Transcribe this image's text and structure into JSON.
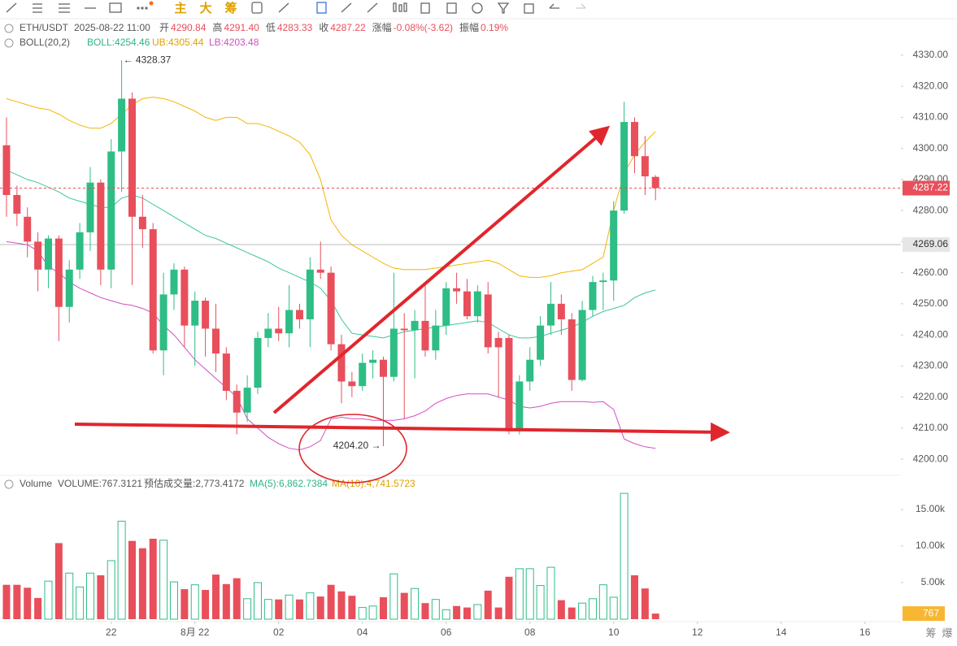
{
  "toolbar": {
    "items": [
      "主",
      "大",
      "筹"
    ],
    "footer": [
      "筹",
      "爆"
    ]
  },
  "chart_data": [
    {
      "type": "candlestick",
      "symbol": "ETH/USDT",
      "time": "2025-08-22 11:00",
      "header": [
        {
          "label": "开",
          "value": "4290.84"
        },
        {
          "label": "高",
          "value": "4291.40"
        },
        {
          "label": "低",
          "value": "4283.33"
        },
        {
          "label": "收",
          "value": "4287.22"
        },
        {
          "label": "涨幅",
          "value": "-0.08%(-3.62)"
        },
        {
          "label": "振幅",
          "value": "0.19%"
        }
      ],
      "indicator": {
        "name": "BOLL(20,2)",
        "mid": "BOLL:4254.46",
        "upper": "UB:4305.44",
        "lower": "LB:4203.48"
      },
      "up_color": "#2ebd85",
      "down_color": "#e84f5b",
      "open": [
        4301,
        4285,
        4278,
        4270,
        4261,
        4271,
        4249,
        4261,
        4273,
        4289,
        4261,
        4299,
        4316,
        4278,
        4274,
        4235,
        4253,
        4261,
        4243,
        4251,
        4242,
        4234,
        4222,
        4215,
        4223,
        4239,
        4242,
        4240.5,
        4248,
        4245,
        4261,
        4260,
        4237,
        4225,
        4223.5,
        4231,
        4232,
        4226.5,
        4242,
        4241.5,
        4244.5,
        4235,
        4243,
        4255,
        4254,
        4246,
        4253,
        4239,
        4239,
        4209,
        4225,
        4232,
        4243,
        4250,
        4245,
        4225.5,
        4248,
        4257,
        4257.5,
        4280,
        4308.5,
        4297.5,
        4290.84
      ],
      "high": [
        4310,
        4288,
        4281,
        4273,
        4272,
        4272,
        4264,
        4276,
        4294,
        4290,
        4303,
        4328.37,
        4318,
        4285,
        4276,
        4260,
        4263,
        4262,
        4254,
        4252,
        4250,
        4236,
        4224,
        4227,
        4241,
        4247,
        4249,
        4256,
        4250,
        4265,
        4270,
        4262,
        4240,
        4228,
        4234,
        4235,
        4233,
        4260,
        4247,
        4248,
        4256,
        4248,
        4257,
        4260,
        4258,
        4256,
        4257,
        4241,
        4240,
        4227,
        4236,
        4246,
        4257,
        4253,
        4247,
        4251,
        4259,
        4260,
        4283,
        4315,
        4310,
        4304,
        4291.4
      ],
      "low": [
        4278,
        4275,
        4265,
        4254,
        4255,
        4238,
        4244,
        4258,
        4267,
        4256,
        4255,
        4286,
        4256,
        4268,
        4234,
        4227,
        4248,
        4236,
        4230,
        4233,
        4228,
        4219,
        4208,
        4212,
        4221,
        4236,
        4238,
        4236,
        4242,
        4236,
        4258,
        4235,
        4218,
        4220,
        4222,
        4226,
        4204.2,
        4225,
        4213,
        4226,
        4233,
        4232,
        4240,
        4250,
        4245,
        4244,
        4234,
        4220,
        4208,
        4208,
        4222,
        4230,
        4240,
        4240,
        4222,
        4225,
        4246,
        4248,
        4251,
        4279,
        4292,
        4285,
        4283.33
      ],
      "close": [
        4285,
        4279,
        4270,
        4261,
        4271,
        4249,
        4261,
        4273,
        4289,
        4261,
        4299,
        4316,
        4278,
        4274,
        4235,
        4253,
        4261,
        4243,
        4251,
        4242,
        4234,
        4222,
        4215,
        4223,
        4239,
        4242,
        4240.5,
        4248,
        4245,
        4261,
        4260,
        4237,
        4225,
        4223.5,
        4231,
        4232,
        4226.5,
        4242,
        4241.5,
        4244.5,
        4235,
        4243,
        4255,
        4254,
        4246,
        4254,
        4236,
        4236,
        4209,
        4225,
        4232,
        4243,
        4250,
        4245,
        4225.5,
        4248,
        4257,
        4257.5,
        4280,
        4308.5,
        4297.5,
        4291,
        4287.22
      ],
      "boll_upper": {
        "color": "#f5b400",
        "values": [
          4316,
          4315,
          4314,
          4313,
          4312.5,
          4311,
          4309,
          4307.5,
          4306.5,
          4306.5,
          4308,
          4311,
          4314,
          4316,
          4316.5,
          4316,
          4315,
          4313.5,
          4312,
          4310,
          4309,
          4310,
          4310,
          4308,
          4308,
          4307,
          4305.5,
          4304,
          4302,
          4298,
          4290,
          4277,
          4272,
          4269,
          4267,
          4265,
          4263,
          4261.5,
          4261,
          4261,
          4261,
          4261.5,
          4262,
          4262.5,
          4263,
          4263.5,
          4264,
          4263,
          4261,
          4259,
          4258.5,
          4258.5,
          4259,
          4260,
          4260.5,
          4261,
          4263,
          4265,
          4280,
          4292,
          4298,
          4302,
          4305.44
        ]
      },
      "boll_mid": {
        "color": "#3cc59a",
        "values": [
          4293,
          4291.5,
          4290,
          4289,
          4287.5,
          4286,
          4284,
          4283,
          4282,
          4281,
          4281,
          4284,
          4285,
          4284,
          4282,
          4280,
          4278,
          4276,
          4274,
          4272,
          4271,
          4269.5,
          4268,
          4266.5,
          4265,
          4263.5,
          4261.5,
          4260,
          4258.5,
          4257,
          4255,
          4251,
          4245,
          4240.5,
          4240,
          4239.5,
          4239,
          4240,
          4241,
          4241.5,
          4242,
          4242.5,
          4243,
          4243.5,
          4244,
          4244.5,
          4244,
          4242,
          4240,
          4239,
          4239,
          4239.5,
          4240.5,
          4241.5,
          4242.5,
          4244,
          4246,
          4247.5,
          4248.5,
          4249.5,
          4252,
          4253.5,
          4254.46
        ]
      },
      "boll_lower": {
        "color": "#d24fc4",
        "values": [
          4270,
          4269.5,
          4269,
          4267,
          4262,
          4260,
          4257,
          4255,
          4253.5,
          4252,
          4251,
          4250,
          4249.5,
          4248.5,
          4247,
          4243,
          4240,
          4236,
          4232,
          4229,
          4226,
          4223,
          4220,
          4213,
          4210,
          4207,
          4205,
          4203.5,
          4203,
          4204,
          4206,
          4213,
          4213.5,
          4213,
          4213,
          4212.5,
          4212.5,
          4212.5,
          4213,
          4214,
          4215.5,
          4218,
          4219.5,
          4220.5,
          4221,
          4221,
          4221,
          4220,
          4219,
          4217,
          4216.5,
          4217,
          4218,
          4218.5,
          4218.5,
          4218.5,
          4218.3,
          4218.5,
          4216,
          4206.5,
          4205,
          4204,
          4203.48
        ]
      },
      "annotations": [
        "← 4328.37",
        "4204.20 →"
      ],
      "current_price": 4287.22,
      "marked_price": 4269.06,
      "xlim": [
        -0.62,
        85.44
      ],
      "ylim": [
        4194.8,
        4339.9
      ],
      "yticks": [
        {
          "value": 4200,
          "label": "4200.00"
        },
        {
          "value": 4210,
          "label": "4210.00"
        },
        {
          "value": 4220,
          "label": "4220.00"
        },
        {
          "value": 4230,
          "label": "4230.00"
        },
        {
          "value": 4240,
          "label": "4240.00"
        },
        {
          "value": 4250,
          "label": "4250.00"
        },
        {
          "value": 4260,
          "label": "4260.00"
        },
        {
          "value": 4270,
          "label": "4270.00"
        },
        {
          "value": 4280,
          "label": "4280.00"
        },
        {
          "value": 4290,
          "label": "4290.00"
        },
        {
          "value": 4300,
          "label": "4300.00"
        },
        {
          "value": 4310,
          "label": "4310.00"
        },
        {
          "value": 4320,
          "label": "4320.00"
        },
        {
          "value": 4330,
          "label": "4330.00"
        }
      ]
    },
    {
      "type": "volume",
      "legend": [
        "Volume",
        "VOLUME:767.3121",
        "预估成交量:2,773.4172",
        "MA(5):6,862.7384",
        "MA(10):4,741.5723"
      ],
      "values": [
        4700,
        4700,
        4300,
        2900,
        5200,
        10400,
        6300,
        4400,
        6300,
        6000,
        8000,
        13400,
        10700,
        9700,
        11000,
        10800,
        5100,
        4100,
        4700,
        4000,
        6100,
        4800,
        5600,
        2800,
        5000,
        2700,
        2700,
        3300,
        2700,
        3600,
        3100,
        4700,
        3800,
        3200,
        1600,
        1800,
        3000,
        6200,
        3600,
        4200,
        2200,
        2700,
        1300,
        1800,
        1600,
        2000,
        3900,
        1600,
        5800,
        6900,
        6900,
        4600,
        7100,
        2600,
        1600,
        2200,
        2800,
        4700,
        3000,
        17200,
        6000,
        4200,
        767.3121
      ],
      "current": {
        "value": 767.3121,
        "label": "767"
      },
      "xlim": [
        -0.62,
        85.44
      ],
      "ylim": [
        0,
        17440
      ],
      "yticks": [
        {
          "value": 5000,
          "label": "5.00k"
        },
        {
          "value": 10000,
          "label": "10.00k"
        },
        {
          "value": 15000,
          "label": "15.00k"
        }
      ],
      "xticks": [
        {
          "value": 10,
          "label": "22"
        },
        {
          "value": 18,
          "label": "8月 22"
        },
        {
          "value": 26,
          "label": "02"
        },
        {
          "value": 34,
          "label": "04"
        },
        {
          "value": 42,
          "label": "06"
        },
        {
          "value": 50,
          "label": "08"
        },
        {
          "value": 58,
          "label": "10"
        },
        {
          "value": 66,
          "label": "12"
        },
        {
          "value": 74,
          "label": "14"
        },
        {
          "value": 82,
          "label": "16"
        }
      ]
    }
  ]
}
